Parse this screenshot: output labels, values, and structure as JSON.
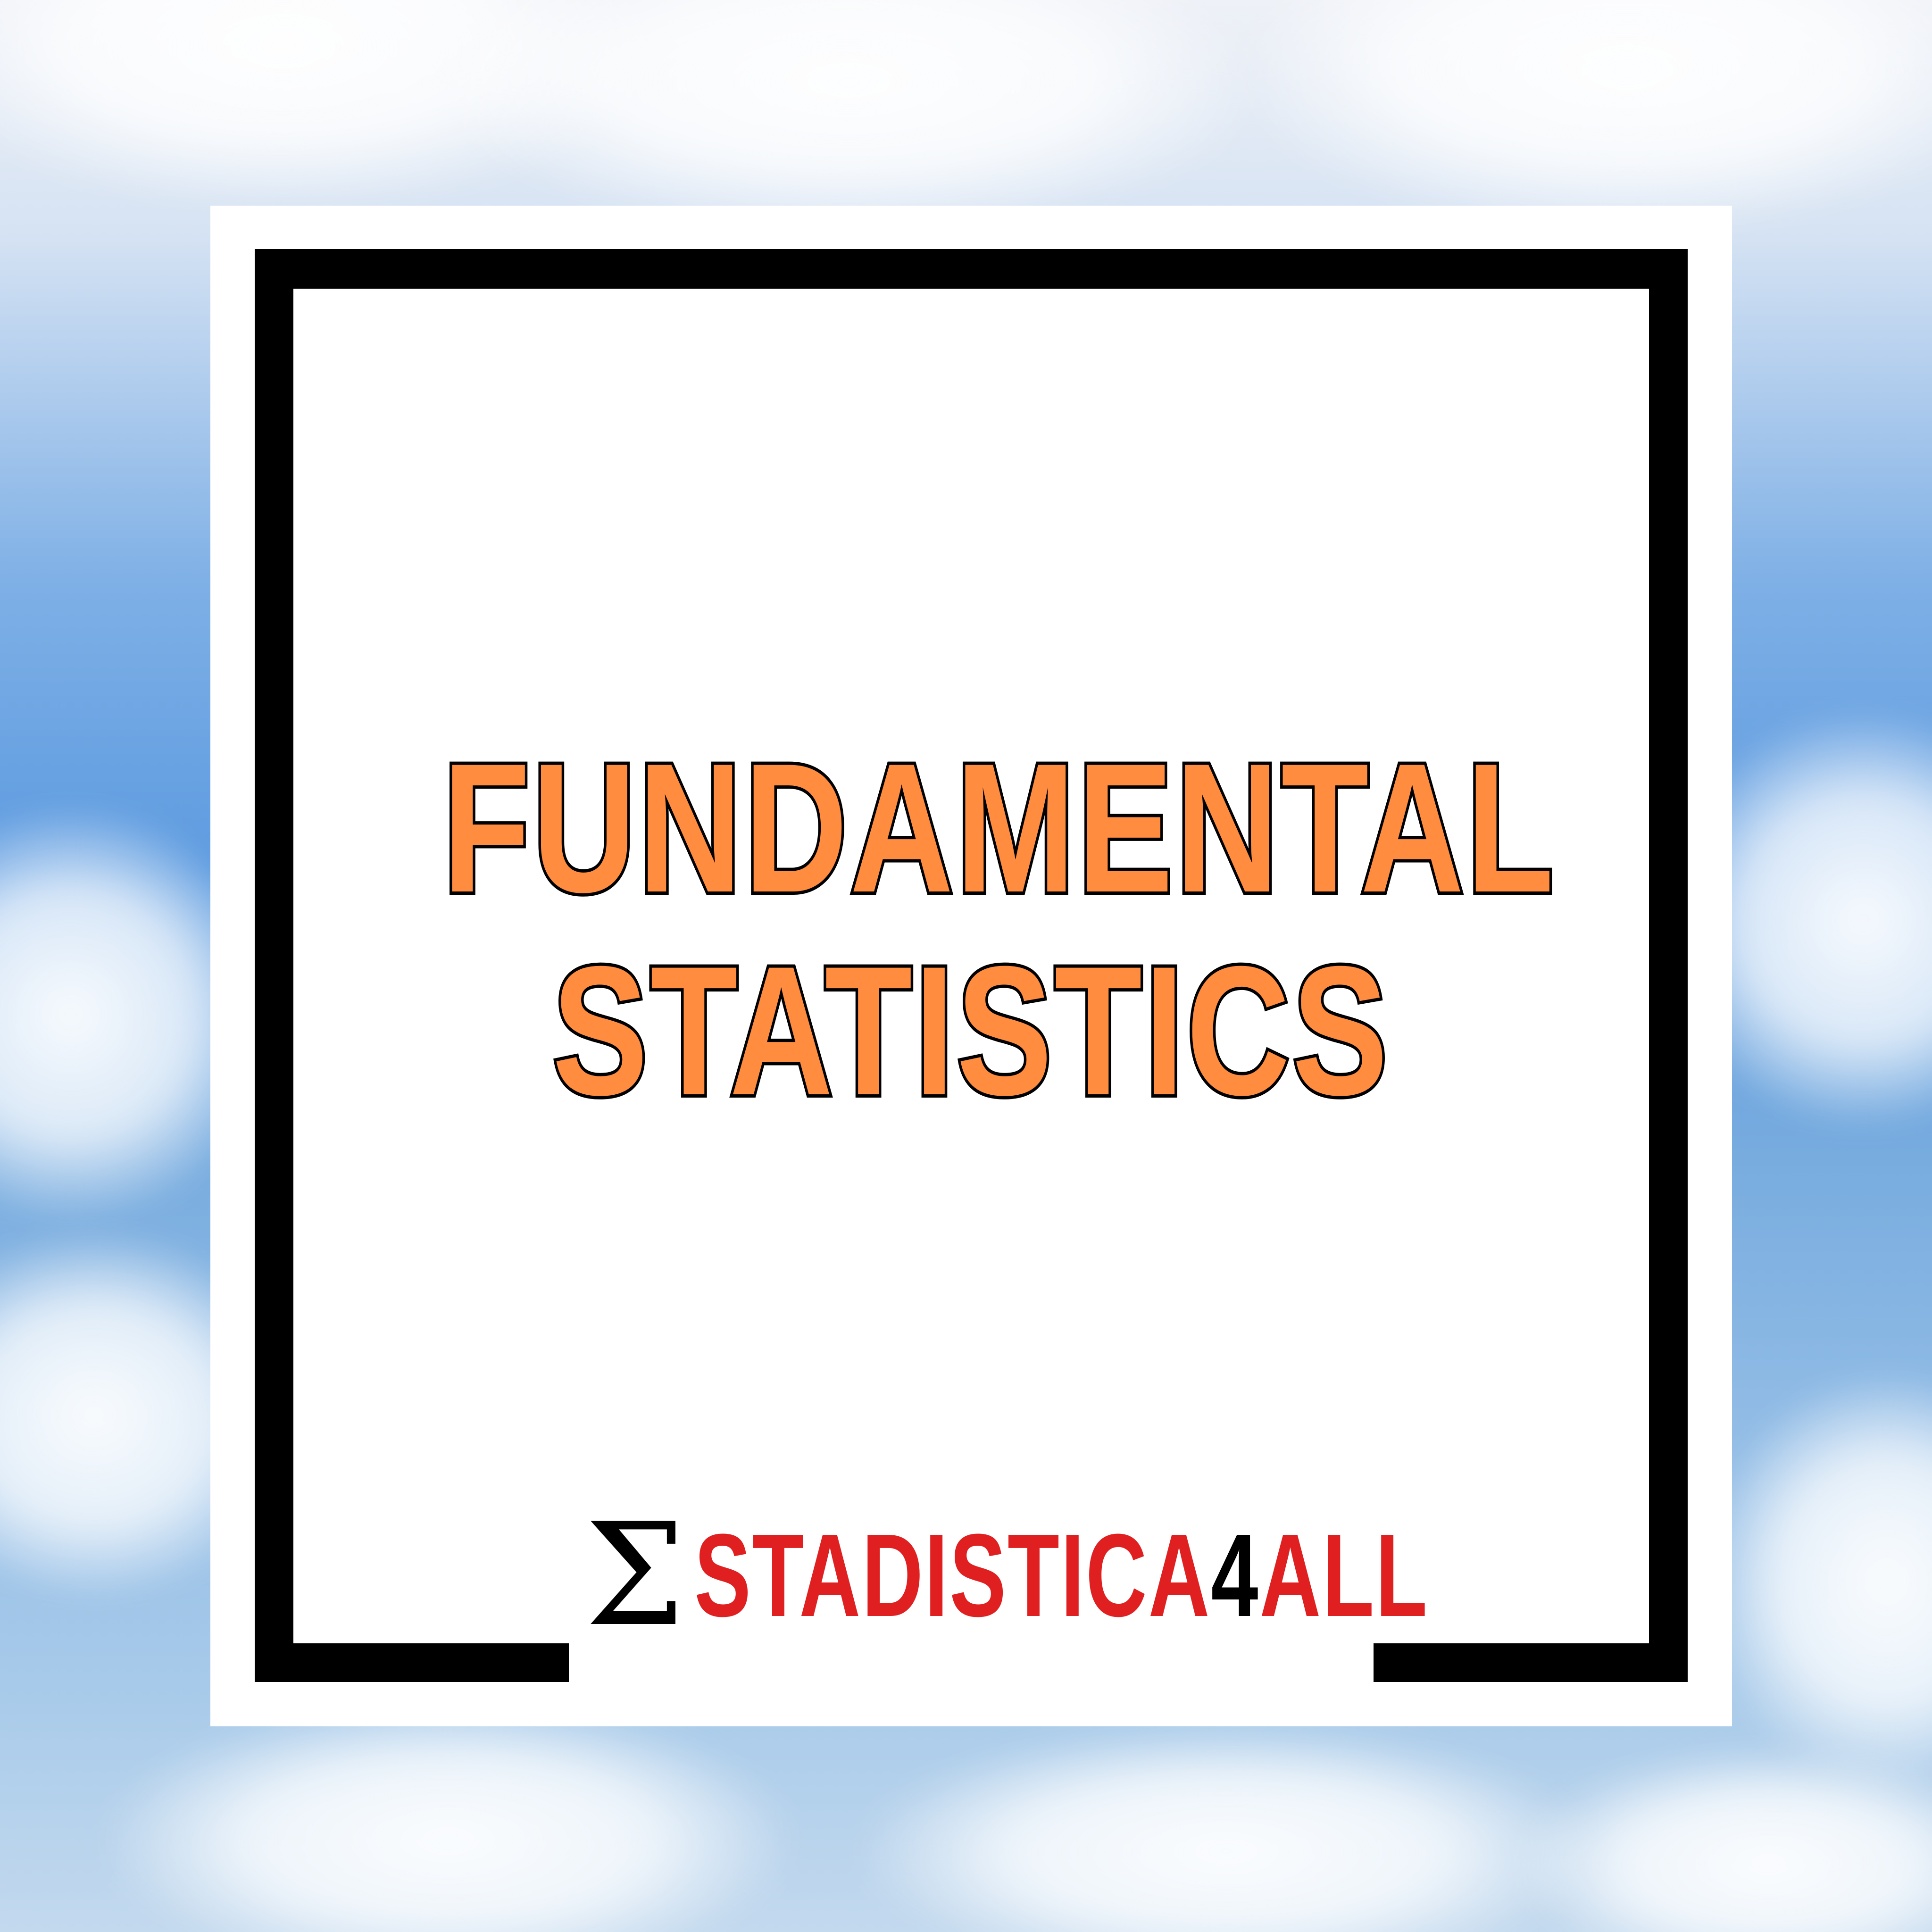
{
  "background": {
    "description_icon": "cloudy-sky-background",
    "colors": {
      "sky_blue": "#5d9be0",
      "cloud_white": "#ffffff"
    }
  },
  "card": {
    "background_color": "#ffffff",
    "frame_color": "#000000"
  },
  "title": {
    "line1": "FUNDAMENTAL",
    "line2": "STATISTICS",
    "fill_color": "#ff8c3f",
    "outline_color": "#000000"
  },
  "logo": {
    "sigma": "Σ",
    "text_part1": "STADISTICA",
    "text_part2": "4",
    "text_part3": "ALL",
    "primary_color": "#e02020",
    "accent_color": "#000000"
  }
}
